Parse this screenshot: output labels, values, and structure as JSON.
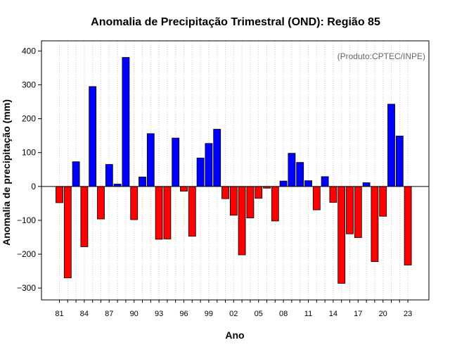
{
  "chart_data": {
    "type": "bar",
    "title": "Anomalia de Precipitação Trimestral (OND): Região 85",
    "xlabel": "Ano",
    "ylabel": "Anomalia de precipitação (mm)",
    "credit": "(Produto:CPTEC/INPE)",
    "ylim": [
      -335,
      430
    ],
    "yticks": [
      -300,
      -200,
      -100,
      0,
      100,
      200,
      300,
      400
    ],
    "grid": "vertical dotted",
    "positive_color": "#0000ff",
    "negative_color": "#ff0000",
    "categories": [
      "81",
      "82",
      "83",
      "84",
      "85",
      "86",
      "87",
      "88",
      "89",
      "90",
      "91",
      "92",
      "93",
      "94",
      "95",
      "96",
      "97",
      "98",
      "99",
      "00",
      "01",
      "02",
      "03",
      "04",
      "05",
      "06",
      "07",
      "08",
      "09",
      "10",
      "11",
      "12",
      "13",
      "14",
      "15",
      "16",
      "17",
      "18",
      "19",
      "20",
      "21",
      "22",
      "23"
    ],
    "xtick_labels": [
      "81",
      "84",
      "87",
      "90",
      "93",
      "96",
      "99",
      "02",
      "05",
      "08",
      "11",
      "14",
      "17",
      "20",
      "23"
    ],
    "values": [
      -48,
      -270,
      73,
      -178,
      295,
      -96,
      65,
      7,
      381,
      -98,
      28,
      156,
      -156,
      -155,
      143,
      -14,
      -147,
      84,
      127,
      169,
      -36,
      -85,
      -202,
      -93,
      -35,
      -5,
      -102,
      16,
      98,
      71,
      17,
      -69,
      29,
      -47,
      -286,
      -140,
      -151,
      11,
      -222,
      -88,
      243,
      149,
      -232
    ]
  }
}
